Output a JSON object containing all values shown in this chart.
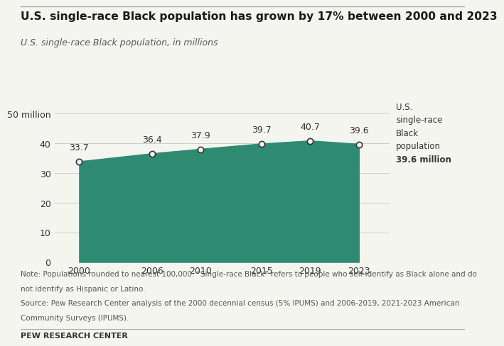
{
  "title": "U.S. single-race Black population has grown by 17% between 2000 and 2023",
  "subtitle": "U.S. single-race Black population, in millions",
  "years": [
    2000,
    2006,
    2010,
    2015,
    2019,
    2023
  ],
  "values": [
    33.7,
    36.4,
    37.9,
    39.7,
    40.7,
    39.6
  ],
  "area_color": "#2e8b72",
  "marker_fill": "#f5f5f0",
  "marker_edge_color": "#333333",
  "background_color": "#f5f5f0",
  "ylim": [
    0,
    55
  ],
  "yticks": [
    0,
    10,
    20,
    30,
    40,
    50
  ],
  "ytick_labels": [
    "0",
    "10",
    "20",
    "30",
    "40",
    "50 million"
  ],
  "note_line1": "Note: Populations rounded to nearest 100,000. “Single-race Black” refers to people who self-identify as Black alone and do",
  "note_line2": "not identify as Hispanic or Latino.",
  "source_line1": "Source: Pew Research Center analysis of the 2000 decennial census (5% IPUMS) and 2006-2019, 2021-2023 American",
  "source_line2": "Community Surveys (IPUMS).",
  "footer": "PEW RESEARCH CENTER",
  "ann_lines_normal": [
    "U.S.",
    "single-race",
    "Black",
    "population"
  ],
  "ann_line_bold": "39.6 million",
  "title_color": "#1a1a1a",
  "subtitle_color": "#555555",
  "grid_color": "#cccccc",
  "text_color": "#333333",
  "note_color": "#555555",
  "label_offsets_x": [
    0,
    0,
    0,
    0,
    0,
    0
  ],
  "label_offsets_y": [
    10,
    10,
    10,
    10,
    10,
    10
  ]
}
